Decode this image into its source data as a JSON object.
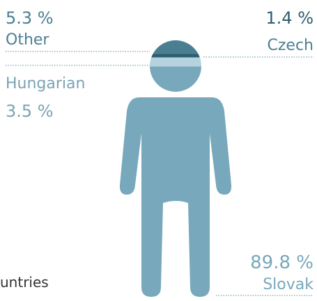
{
  "chart_data": {
    "type": "pictogram",
    "categories": [
      "Other",
      "Czech",
      "Hungarian",
      "Slovak"
    ],
    "values": [
      5.3,
      1.4,
      3.5,
      89.8
    ],
    "value_labels": [
      "5.3 %",
      "1.4 %",
      "3.5 %",
      "89.8 %"
    ],
    "colors": [
      "#4a7f93",
      "#2e5d6e",
      "#b5d3de",
      "#78a8bb"
    ],
    "caption": "untries"
  }
}
